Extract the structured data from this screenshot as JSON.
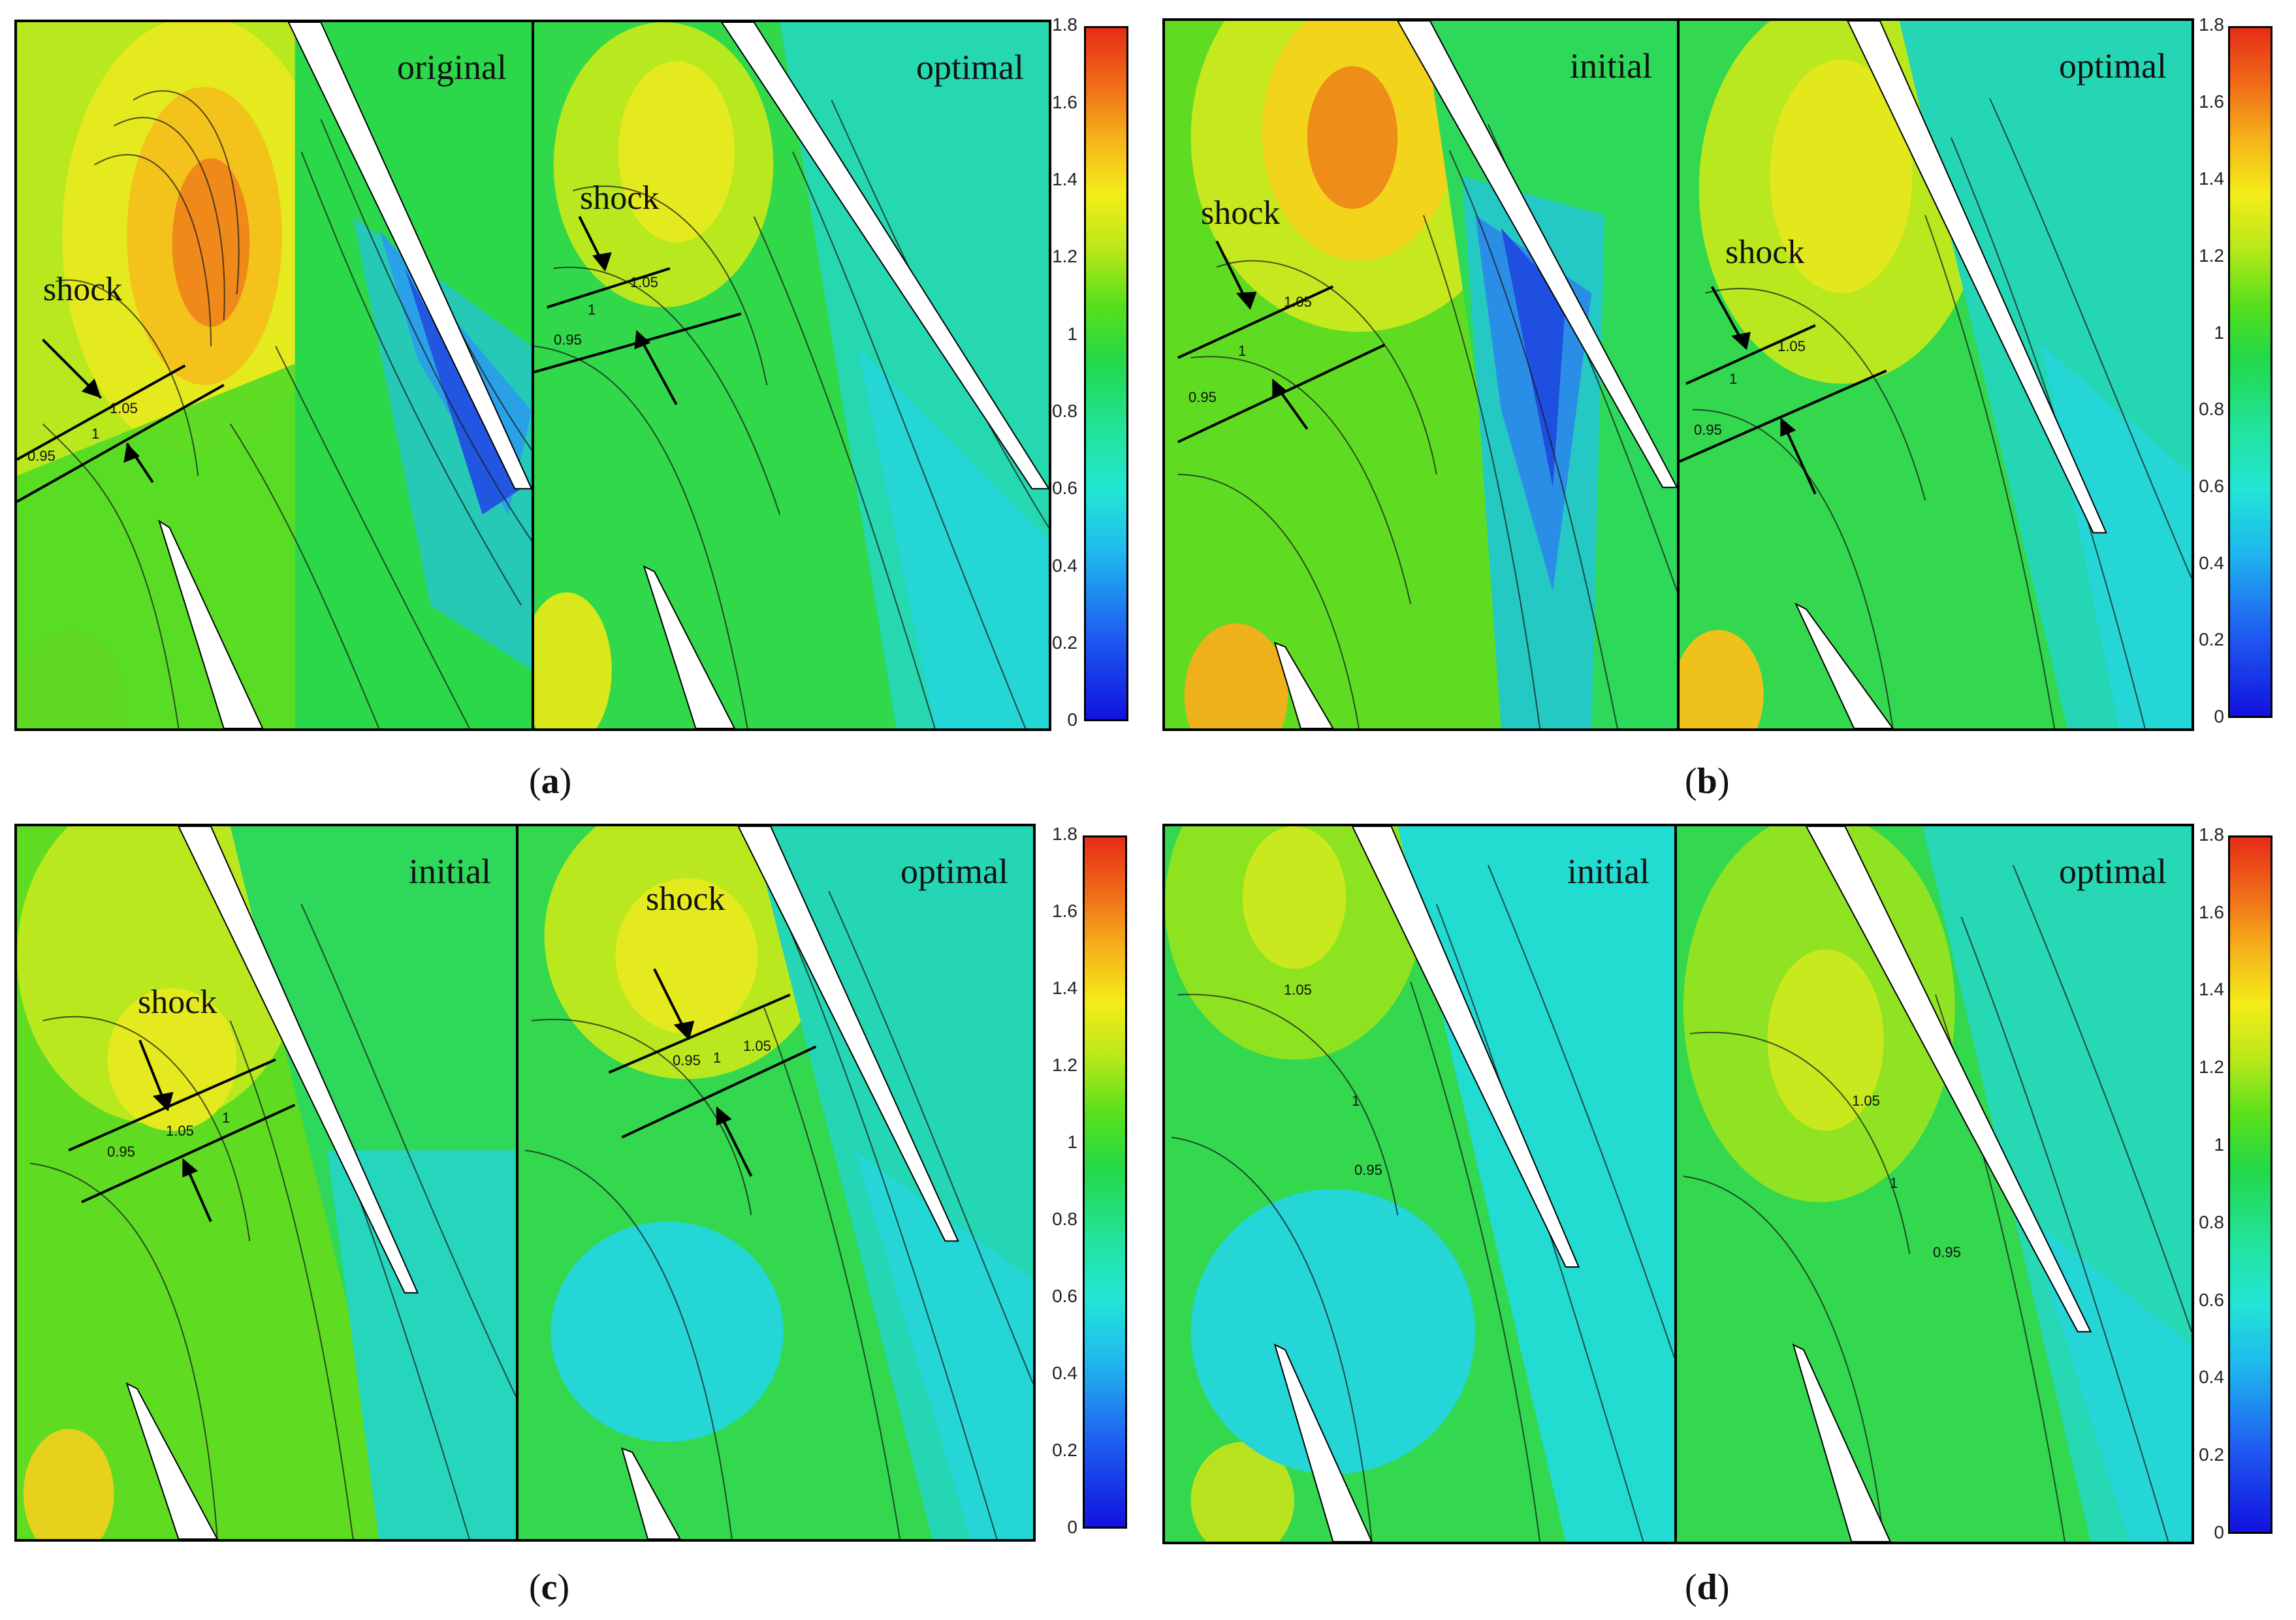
{
  "figure": {
    "colorbar_ticks": [
      "0",
      "0.2",
      "0.4",
      "0.6",
      "0.8",
      "1",
      "1.2",
      "1.4",
      "1.6",
      "1.8"
    ],
    "colors": {
      "high": "#e52d17",
      "mid": "#23d848",
      "low": "#1212e0"
    },
    "groups": [
      {
        "id": "a",
        "caption_letter": "a",
        "panels": [
          {
            "title": "original",
            "shock_label": "shock",
            "contour_labels": [
              "1.05",
              "1",
              "0.95"
            ]
          },
          {
            "title": "optimal",
            "shock_label": "shock",
            "contour_labels": [
              "1.05",
              "1",
              "0.95"
            ]
          }
        ]
      },
      {
        "id": "b",
        "caption_letter": "b",
        "panels": [
          {
            "title": "initial",
            "shock_label": "shock",
            "contour_labels": [
              "1.05",
              "1",
              "0.95"
            ]
          },
          {
            "title": "optimal",
            "shock_label": "shock",
            "contour_labels": [
              "1.05",
              "1",
              "0.95"
            ]
          }
        ]
      },
      {
        "id": "c",
        "caption_letter": "c",
        "panels": [
          {
            "title": "initial",
            "shock_label": "shock",
            "contour_labels": [
              "1.05",
              "1",
              "0.95"
            ]
          },
          {
            "title": "optimal",
            "shock_label": "shock",
            "contour_labels": [
              "0.95",
              "1",
              "1.05"
            ]
          }
        ]
      },
      {
        "id": "d",
        "caption_letter": "d",
        "panels": [
          {
            "title": "initial",
            "shock_label": "",
            "contour_labels": [
              "1.05",
              "1",
              "0.95"
            ]
          },
          {
            "title": "optimal",
            "shock_label": "",
            "contour_labels": [
              "1.05",
              "1",
              "0.95"
            ]
          }
        ]
      }
    ]
  }
}
